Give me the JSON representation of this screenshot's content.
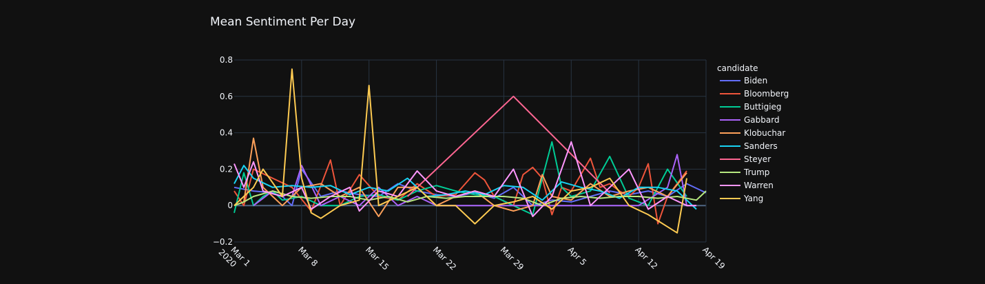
{
  "chart_data": {
    "type": "line",
    "title": "Mean Sentiment Per Day",
    "legend_title": "candidate",
    "legend_placement": "right",
    "grid": true,
    "xlabel": "",
    "ylabel": "",
    "x_start": "2020-03-01",
    "x_range": [
      "2020-03-01",
      "2020-04-19"
    ],
    "ylim": [
      -0.2,
      0.8
    ],
    "y_ticks": [
      -0.2,
      0,
      0.2,
      0.4,
      0.6,
      0.8
    ],
    "y_tick_labels": [
      "−0.2",
      "0",
      "0.2",
      "0.4",
      "0.6",
      "0.8"
    ],
    "x_tick_dates": [
      "2020-03-01",
      "2020-03-08",
      "2020-03-15",
      "2020-03-22",
      "2020-03-29",
      "2020-04-05",
      "2020-04-12",
      "2020-04-19"
    ],
    "x_ticks": [
      {
        "label": "Mar 1",
        "sub": "2020"
      },
      {
        "label": "Mar 8",
        "sub": ""
      },
      {
        "label": "Mar 15",
        "sub": ""
      },
      {
        "label": "Mar 22",
        "sub": ""
      },
      {
        "label": "Mar 29",
        "sub": ""
      },
      {
        "label": "Apr 5",
        "sub": ""
      },
      {
        "label": "Apr 12",
        "sub": ""
      },
      {
        "label": "Apr 19",
        "sub": ""
      }
    ],
    "series": [
      {
        "name": "Biden",
        "color": "#636efa",
        "x": [
          "2020-03-01",
          "2020-03-03",
          "2020-03-05",
          "2020-03-06",
          "2020-03-07",
          "2020-03-08",
          "2020-03-10",
          "2020-03-12",
          "2020-03-14",
          "2020-03-16",
          "2020-03-18",
          "2020-03-20",
          "2020-03-22",
          "2020-03-24",
          "2020-03-26",
          "2020-03-28",
          "2020-03-30",
          "2020-04-01",
          "2020-04-03",
          "2020-04-05",
          "2020-04-07",
          "2020-04-09",
          "2020-04-11",
          "2020-04-13",
          "2020-04-15",
          "2020-04-17",
          "2020-04-19"
        ],
        "y": [
          0.1,
          0.08,
          0.07,
          0.05,
          0.0,
          0.2,
          0.05,
          0.08,
          0.06,
          0.05,
          0.12,
          0.08,
          0.06,
          0.05,
          0.07,
          0.04,
          0.1,
          0.0,
          0.03,
          0.02,
          0.05,
          0.08,
          0.06,
          0.08,
          0.05,
          0.12,
          0.07
        ]
      },
      {
        "name": "Bloomberg",
        "color": "#ef553b",
        "x": [
          "2020-03-01",
          "2020-03-02",
          "2020-03-03",
          "2020-03-05",
          "2020-03-07",
          "2020-03-09",
          "2020-03-11",
          "2020-03-12",
          "2020-03-14",
          "2020-03-16",
          "2020-03-18",
          "2020-03-20",
          "2020-03-22",
          "2020-03-24",
          "2020-03-26",
          "2020-03-27",
          "2020-03-28",
          "2020-03-30",
          "2020-03-31",
          "2020-04-01",
          "2020-04-02",
          "2020-04-03",
          "2020-04-04",
          "2020-04-05",
          "2020-04-07",
          "2020-04-08",
          "2020-04-09",
          "2020-04-10",
          "2020-04-11",
          "2020-04-12",
          "2020-04-13",
          "2020-04-14",
          "2020-04-15",
          "2020-04-17"
        ],
        "y": [
          0.08,
          0.0,
          0.2,
          0.15,
          0.1,
          -0.03,
          0.25,
          0.0,
          0.17,
          0.05,
          0.03,
          0.12,
          0.05,
          0.06,
          0.18,
          0.14,
          0.05,
          0.0,
          0.17,
          0.21,
          0.15,
          -0.05,
          0.1,
          0.08,
          0.26,
          0.1,
          0.12,
          0.08,
          0.05,
          0.1,
          0.23,
          -0.1,
          0.05,
          0.19
        ]
      },
      {
        "name": "Buttigieg",
        "color": "#00cc96",
        "x": [
          "2020-03-01",
          "2020-03-02",
          "2020-03-03",
          "2020-03-04",
          "2020-03-05",
          "2020-03-06",
          "2020-03-08",
          "2020-03-10",
          "2020-03-12",
          "2020-03-14",
          "2020-03-16",
          "2020-03-18",
          "2020-03-20",
          "2020-03-22",
          "2020-03-24",
          "2020-03-26",
          "2020-03-28",
          "2020-03-30",
          "2020-04-01",
          "2020-04-03",
          "2020-04-04",
          "2020-04-05",
          "2020-04-07",
          "2020-04-09",
          "2020-04-11",
          "2020-04-13",
          "2020-04-15",
          "2020-04-17"
        ],
        "y": [
          -0.04,
          0.18,
          0.0,
          0.05,
          0.08,
          0.03,
          0.05,
          0.0,
          0.0,
          0.05,
          0.06,
          0.03,
          0.08,
          0.11,
          0.08,
          0.06,
          0.05,
          0.0,
          -0.05,
          0.35,
          0.1,
          0.05,
          0.08,
          0.27,
          0.04,
          0.0,
          0.2,
          0.05
        ]
      },
      {
        "name": "Gabbard",
        "color": "#ab63fa",
        "x": [
          "2020-03-03",
          "2020-03-05",
          "2020-03-07",
          "2020-03-08",
          "2020-03-10",
          "2020-03-12",
          "2020-03-14",
          "2020-03-16",
          "2020-03-18",
          "2020-03-20",
          "2020-03-22",
          "2020-03-25",
          "2020-03-28",
          "2020-03-31",
          "2020-04-03",
          "2020-04-06",
          "2020-04-09",
          "2020-04-12",
          "2020-04-15",
          "2020-04-16",
          "2020-04-17",
          "2020-04-18"
        ],
        "y": [
          0.0,
          0.08,
          0.05,
          0.22,
          0.0,
          0.05,
          0.0,
          0.1,
          0.0,
          0.05,
          0.0,
          0.0,
          0.0,
          0.0,
          0.0,
          0.0,
          0.0,
          0.0,
          0.1,
          0.28,
          0.0,
          0.0
        ]
      },
      {
        "name": "Klobuchar",
        "color": "#ffa15a",
        "x": [
          "2020-03-01",
          "2020-03-02",
          "2020-03-03",
          "2020-03-04",
          "2020-03-05",
          "2020-03-06",
          "2020-03-08",
          "2020-03-10",
          "2020-03-12",
          "2020-03-14",
          "2020-03-16",
          "2020-03-18",
          "2020-03-20",
          "2020-03-22",
          "2020-03-24",
          "2020-03-26",
          "2020-03-28",
          "2020-03-30",
          "2020-04-01",
          "2020-04-02",
          "2020-04-03",
          "2020-04-05",
          "2020-04-07",
          "2020-04-09",
          "2020-04-11",
          "2020-04-13",
          "2020-04-15",
          "2020-04-17"
        ],
        "y": [
          0.0,
          0.02,
          0.37,
          0.1,
          0.05,
          0.0,
          0.1,
          0.12,
          0.05,
          0.1,
          -0.06,
          0.1,
          0.1,
          0.0,
          0.05,
          0.08,
          0.0,
          -0.03,
          0.0,
          0.17,
          0.05,
          0.03,
          0.12,
          0.05,
          0.08,
          0.1,
          0.05,
          0.18
        ]
      },
      {
        "name": "Sanders",
        "color": "#19d3f3",
        "x": [
          "2020-03-01",
          "2020-03-02",
          "2020-03-03",
          "2020-03-05",
          "2020-03-07",
          "2020-03-09",
          "2020-03-11",
          "2020-03-13",
          "2020-03-15",
          "2020-03-17",
          "2020-03-19",
          "2020-03-21",
          "2020-03-23",
          "2020-03-25",
          "2020-03-27",
          "2020-03-29",
          "2020-03-31",
          "2020-04-02",
          "2020-04-04",
          "2020-04-06",
          "2020-04-08",
          "2020-04-10",
          "2020-04-12",
          "2020-04-14",
          "2020-04-16",
          "2020-04-18"
        ],
        "y": [
          0.12,
          0.22,
          0.15,
          0.1,
          0.11,
          0.1,
          0.11,
          0.06,
          0.1,
          0.08,
          0.15,
          0.05,
          0.06,
          0.08,
          0.06,
          0.11,
          0.1,
          0.03,
          0.13,
          0.1,
          0.08,
          0.04,
          0.1,
          0.1,
          0.08,
          -0.02
        ]
      },
      {
        "name": "Steyer",
        "color": "#ff6692",
        "x": [
          "2020-03-19",
          "2020-03-30",
          "2020-04-09"
        ],
        "y": [
          0.05,
          0.6,
          0.07
        ]
      },
      {
        "name": "Trump",
        "color": "#b6e880",
        "x": [
          "2020-03-01",
          "2020-03-02",
          "2020-03-03",
          "2020-03-05",
          "2020-03-07",
          "2020-03-09",
          "2020-03-11",
          "2020-03-13",
          "2020-03-15",
          "2020-03-17",
          "2020-03-19",
          "2020-03-21",
          "2020-03-23",
          "2020-03-25",
          "2020-03-27",
          "2020-03-29",
          "2020-03-31",
          "2020-04-02",
          "2020-04-04",
          "2020-04-06",
          "2020-04-08",
          "2020-04-10",
          "2020-04-12",
          "2020-04-14",
          "2020-04-16",
          "2020-04-18",
          "2020-04-19"
        ],
        "y": [
          0.0,
          0.02,
          0.05,
          0.08,
          0.05,
          0.04,
          0.05,
          0.05,
          0.03,
          0.05,
          0.02,
          0.05,
          0.04,
          0.05,
          0.05,
          0.05,
          0.04,
          0.0,
          0.04,
          0.05,
          0.04,
          0.05,
          0.05,
          0.04,
          0.05,
          0.03,
          0.08
        ]
      },
      {
        "name": "Warren",
        "color": "#ff97ff",
        "x": [
          "2020-03-01",
          "2020-03-02",
          "2020-03-03",
          "2020-03-04",
          "2020-03-06",
          "2020-03-08",
          "2020-03-09",
          "2020-03-11",
          "2020-03-13",
          "2020-03-14",
          "2020-03-16",
          "2020-03-18",
          "2020-03-20",
          "2020-03-22",
          "2020-03-24",
          "2020-03-26",
          "2020-03-28",
          "2020-03-30",
          "2020-04-01",
          "2020-04-03",
          "2020-04-05",
          "2020-04-07",
          "2020-04-09",
          "2020-04-11",
          "2020-04-13",
          "2020-04-15",
          "2020-04-17",
          "2020-04-18"
        ],
        "y": [
          0.23,
          0.1,
          0.24,
          0.08,
          0.05,
          0.1,
          -0.02,
          0.05,
          0.1,
          -0.03,
          0.08,
          0.05,
          0.19,
          0.08,
          0.05,
          0.08,
          0.05,
          0.2,
          -0.06,
          0.05,
          0.35,
          0.0,
          0.1,
          0.2,
          -0.02,
          0.05,
          0.0,
          0.0
        ]
      },
      {
        "name": "Yang",
        "color": "#fecb52",
        "x": [
          "2020-03-01",
          "2020-03-02",
          "2020-03-03",
          "2020-03-04",
          "2020-03-06",
          "2020-03-07",
          "2020-03-08",
          "2020-03-09",
          "2020-03-10",
          "2020-03-12",
          "2020-03-14",
          "2020-03-15",
          "2020-03-16",
          "2020-03-18",
          "2020-03-20",
          "2020-03-22",
          "2020-03-24",
          "2020-03-26",
          "2020-03-28",
          "2020-03-30",
          "2020-04-01",
          "2020-04-03",
          "2020-04-05",
          "2020-04-07",
          "2020-04-09",
          "2020-04-11",
          "2020-04-13",
          "2020-04-16",
          "2020-04-17"
        ],
        "y": [
          0.0,
          0.05,
          0.1,
          0.2,
          0.05,
          0.75,
          0.15,
          -0.04,
          -0.07,
          0.0,
          0.03,
          0.66,
          0.0,
          0.05,
          0.1,
          0.0,
          0.0,
          -0.1,
          0.0,
          0.02,
          0.05,
          -0.02,
          0.08,
          0.1,
          0.15,
          0.0,
          -0.05,
          -0.15,
          0.15
        ]
      }
    ]
  }
}
